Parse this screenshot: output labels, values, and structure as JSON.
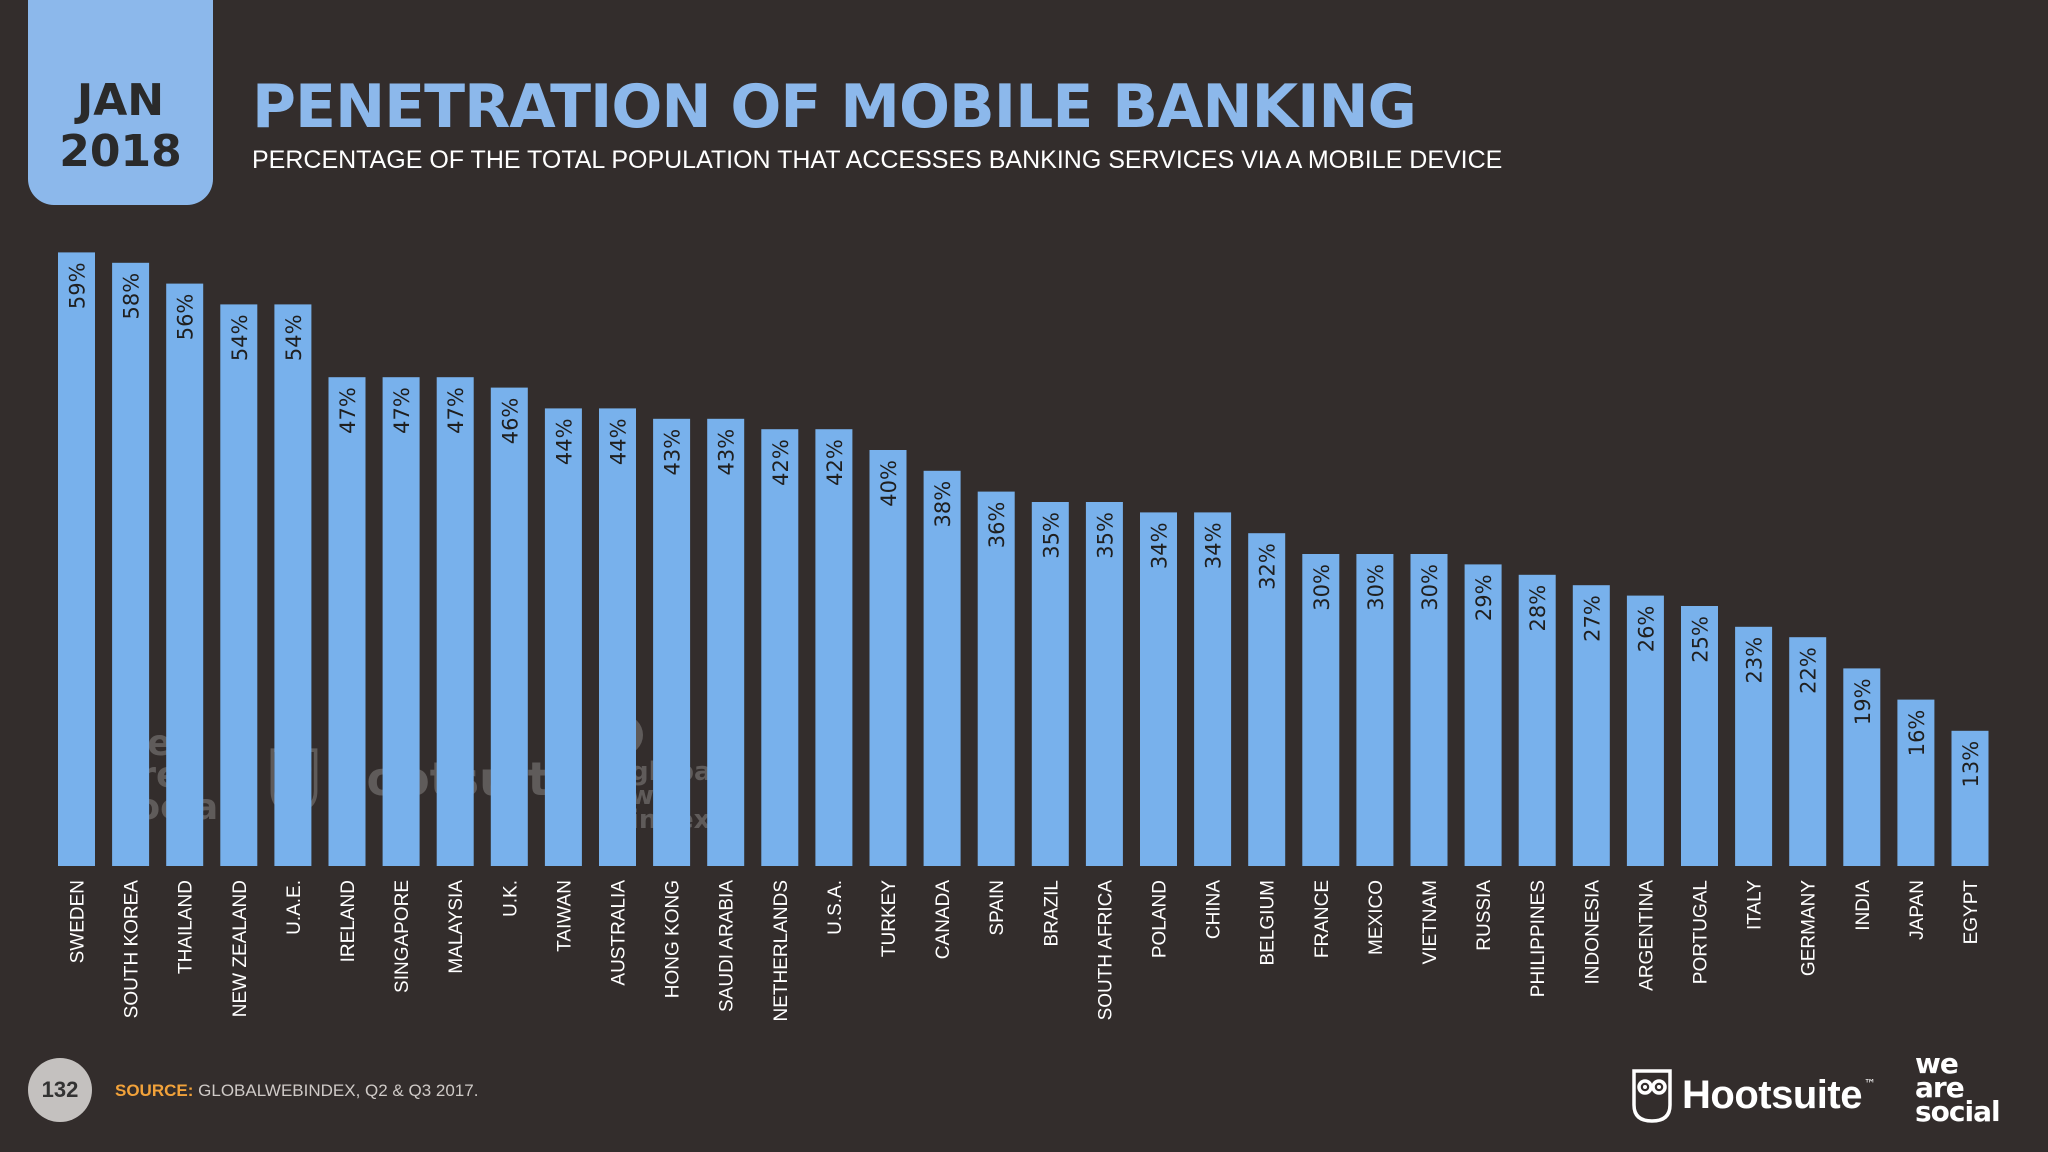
{
  "header": {
    "date_month": "JAN",
    "date_year": "2018",
    "title": "PENETRATION OF MOBILE BANKING",
    "subtitle": "PERCENTAGE OF THE TOTAL POPULATION THAT ACCESSES BANKING SERVICES VIA A MOBILE DEVICE"
  },
  "footer": {
    "page_number": "132",
    "source_label": "SOURCE:",
    "source_text": "GLOBALWEBINDEX, Q2 & Q3 2017.",
    "hootsuite_brand": "Hootsuite",
    "hootsuite_tm": "™",
    "was_line1": "we",
    "was_line2": "are",
    "was_line3": "social"
  },
  "watermarks": {
    "was_line1": "we",
    "was_line2": "are",
    "was_line3": "social",
    "hootsuite": "Hootsuite",
    "gwi_line1": "global",
    "gwi_line2": "web",
    "gwi_line3": "index"
  },
  "colors": {
    "background": "#332d2c",
    "bar": "#78b1ec",
    "accent": "#8cb8eb",
    "source_label": "#f2a23a"
  },
  "chart_data": {
    "type": "bar",
    "orientation": "vertical",
    "categories": [
      "SWEDEN",
      "SOUTH KOREA",
      "THAILAND",
      "NEW ZEALAND",
      "U.A.E.",
      "IRELAND",
      "SINGAPORE",
      "MALAYSIA",
      "U.K.",
      "TAIWAN",
      "AUSTRALIA",
      "HONG KONG",
      "SAUDI ARABIA",
      "NETHERLANDS",
      "U.S.A.",
      "TURKEY",
      "CANADA",
      "SPAIN",
      "BRAZIL",
      "SOUTH AFRICA",
      "POLAND",
      "CHINA",
      "BELGIUM",
      "FRANCE",
      "MEXICO",
      "VIETNAM",
      "RUSSIA",
      "PHILIPPINES",
      "INDONESIA",
      "ARGENTINA",
      "PORTUGAL",
      "ITALY",
      "GERMANY",
      "INDIA",
      "JAPAN",
      "EGYPT"
    ],
    "values": [
      59,
      58,
      56,
      54,
      54,
      47,
      47,
      47,
      46,
      44,
      44,
      43,
      43,
      42,
      42,
      40,
      38,
      36,
      35,
      35,
      34,
      34,
      32,
      30,
      30,
      30,
      29,
      28,
      27,
      26,
      25,
      23,
      22,
      19,
      16,
      13
    ],
    "value_labels": [
      "59%",
      "58%",
      "56%",
      "54%",
      "54%",
      "47%",
      "47%",
      "47%",
      "46%",
      "44%",
      "44%",
      "43%",
      "43%",
      "42%",
      "42%",
      "40%",
      "38%",
      "36%",
      "35%",
      "35%",
      "34%",
      "34%",
      "32%",
      "30%",
      "30%",
      "30%",
      "29%",
      "28%",
      "27%",
      "26%",
      "25%",
      "23%",
      "22%",
      "19%",
      "16%",
      "13%"
    ],
    "unit": "%",
    "title": "PENETRATION OF MOBILE BANKING",
    "xlabel": "",
    "ylabel": "",
    "ylim": [
      0,
      60
    ],
    "grid": false,
    "legend": "none"
  }
}
